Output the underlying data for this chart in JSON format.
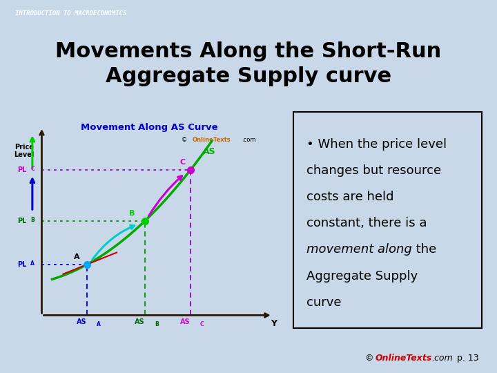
{
  "bg_color": "#c8d8e8",
  "header_bar_color": "#1a1a2e",
  "header_text": "INTRODUCTION TO MACROECONOMICS",
  "title_text": "Movements Along the Short-Run\nAggregate Supply curve",
  "title_fontsize": 22,
  "title_bg": "#ffffff",
  "graph_bg": "#f5f5dc",
  "graph_title": "Movement Along AS Curve",
  "graph_title_color": "#0000cc",
  "bullet_box_bg": "#ffffff",
  "footer_color": "#cc0000",
  "point_A": [
    0.22,
    0.28
  ],
  "point_B": [
    0.5,
    0.52
  ],
  "point_C": [
    0.72,
    0.8
  ],
  "curve_color": "#00aa00",
  "arrow_AB_color": "#00cccc",
  "arrow_BC_color": "#cc00cc",
  "dot_A_color": "#00aaff",
  "dot_B_color": "#00cc00",
  "dot_C_color": "#cc00cc",
  "PLA_color": "#0000cc",
  "PLB_color": "#006600",
  "PLC_color": "#cc00cc",
  "ASA_color": "#0000cc",
  "ASB_color": "#006600",
  "ASC_color": "#cc00cc",
  "dashed_A_color": "#0000cc",
  "dashed_B_color": "#009900",
  "dashed_C_color": "#9900cc",
  "yaxis_arrow_green": "#00cc00",
  "yaxis_arrow_blue": "#0000cc",
  "red_tangent_color": "#cc0000",
  "online_texts_color": "#cc6600",
  "ax_color": "#2a1a00"
}
